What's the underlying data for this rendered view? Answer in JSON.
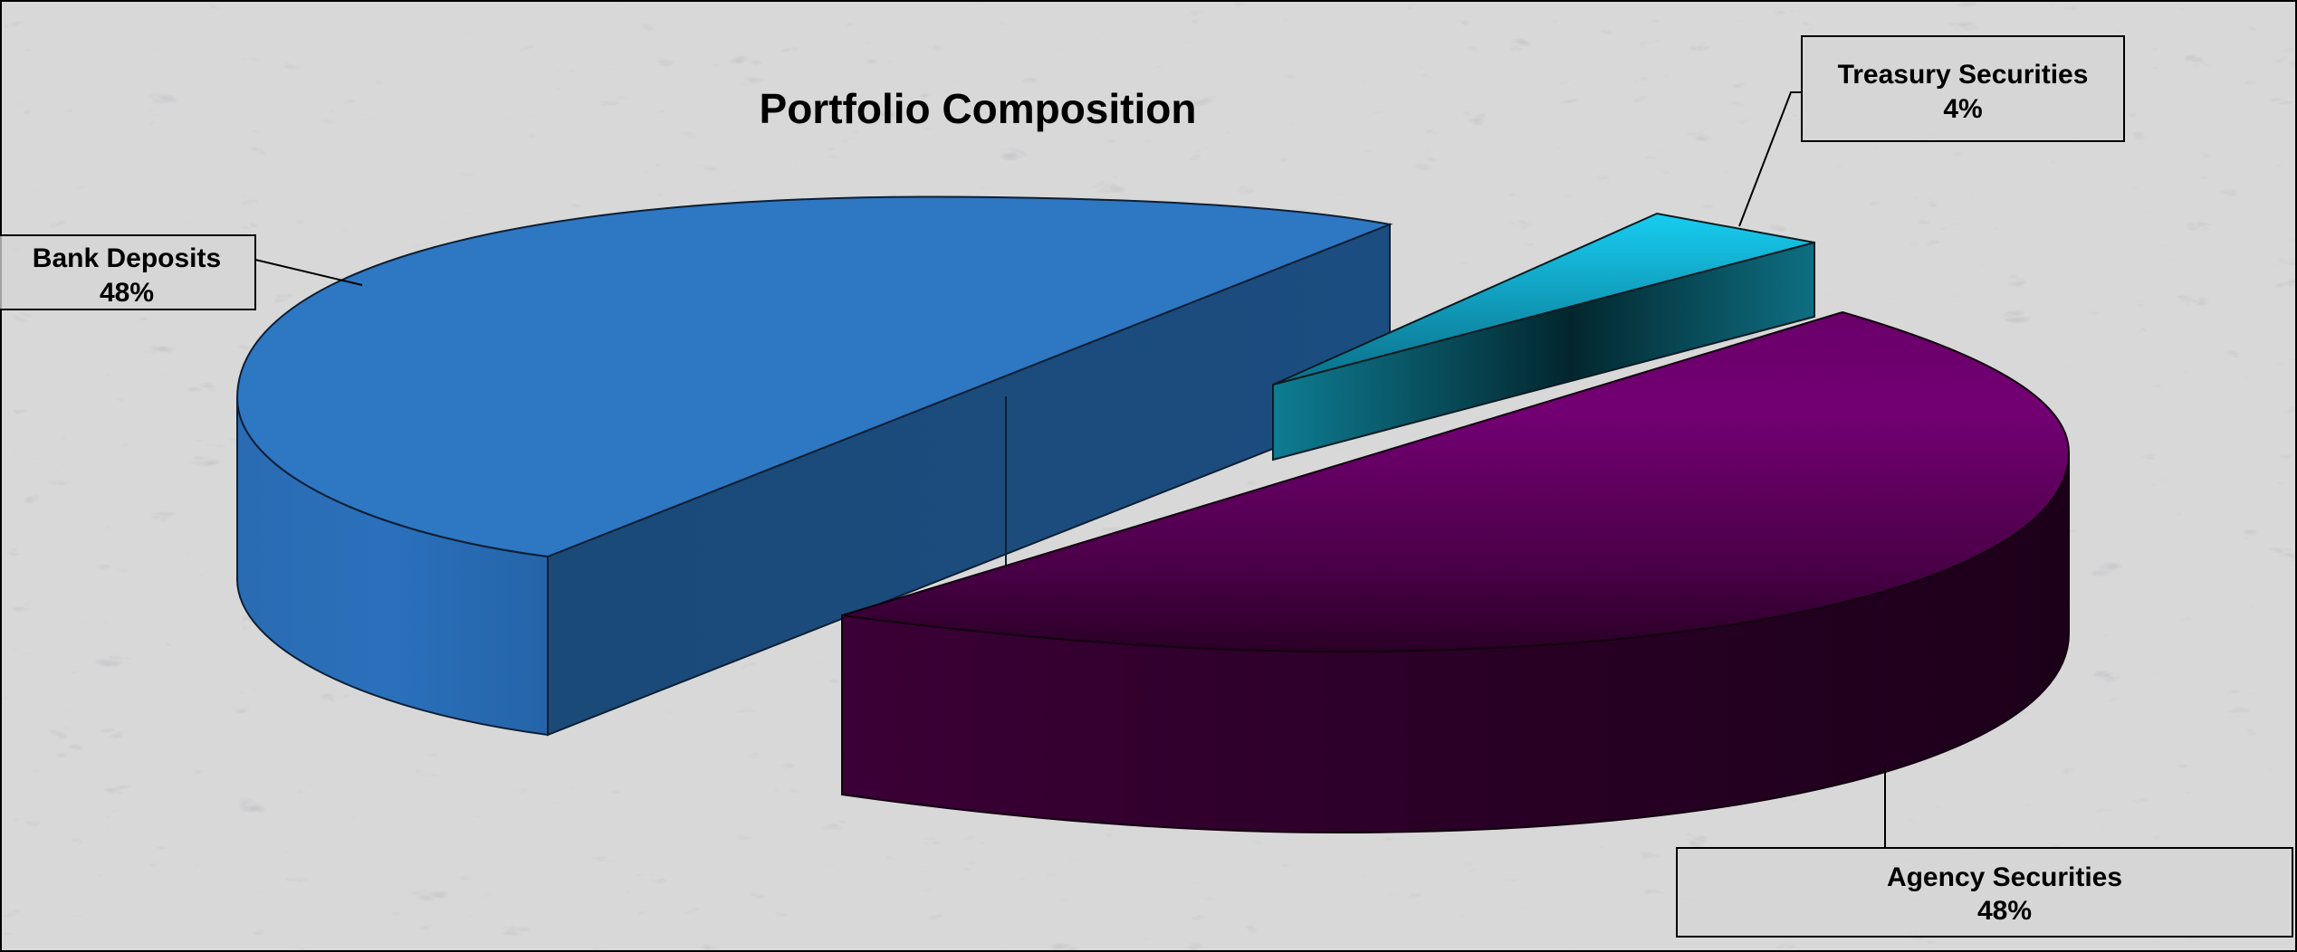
{
  "chart_data": {
    "type": "pie",
    "style": "3d-exploded",
    "title": "Portfolio Composition",
    "slices": [
      {
        "label": "Bank Deposits",
        "value": 48,
        "value_label": "48%",
        "color": "#2e75c0"
      },
      {
        "label": "Treasury Securities",
        "value": 4,
        "value_label": "4%",
        "color": "#11c2e8"
      },
      {
        "label": "Agency Securities",
        "value": 48,
        "value_label": "48%",
        "color": "#720072"
      }
    ],
    "legend": "none",
    "data_labels": "outside-with-leader-lines",
    "background": "marble-texture"
  }
}
